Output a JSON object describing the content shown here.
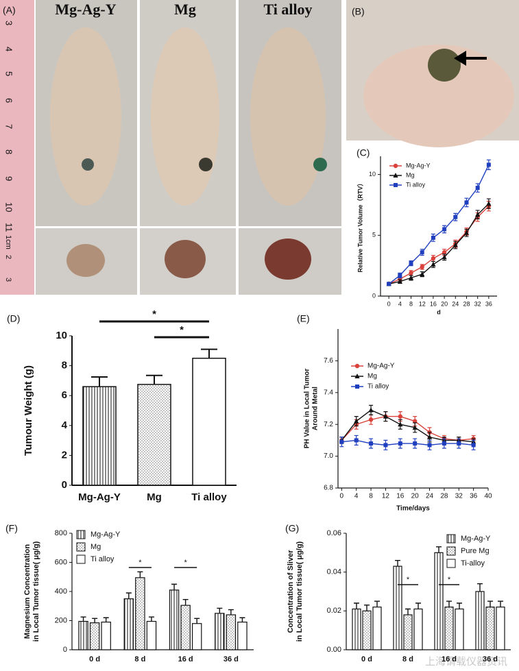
{
  "photos": {
    "a_label": "(A)",
    "groups": [
      "Mg-Ag-Y",
      "Mg",
      "Ti alloy"
    ],
    "ruler_top": [
      "3",
      "4",
      "5",
      "6",
      "7",
      "8",
      "9",
      "10",
      "11"
    ],
    "ruler_bottom": [
      "1cm",
      "2",
      "3"
    ],
    "b_label": "(B)"
  },
  "watermark": "上海谓载仪器资讯",
  "chart_data": [
    {
      "type": "line",
      "panel_label": "(C)",
      "xlabel": "d",
      "ylabel": "Relative Tumor Volume（RTV）",
      "x": [
        0,
        4,
        8,
        12,
        16,
        20,
        24,
        28,
        32,
        36
      ],
      "xlim": [
        -3,
        39
      ],
      "xticks": [
        0,
        4,
        8,
        12,
        16,
        20,
        24,
        28,
        32,
        36
      ],
      "ylim": [
        0,
        11.5
      ],
      "yticks": [
        0,
        5,
        10
      ],
      "legend": "top-left",
      "series": [
        {
          "name": "Mg-Ag-Y",
          "color": "#d9413a",
          "marker": "circle",
          "values": [
            1,
            1.4,
            1.9,
            2.4,
            3.1,
            3.6,
            4.3,
            5.3,
            6.5,
            7.4
          ],
          "errors": [
            0.1,
            0.2,
            0.2,
            0.2,
            0.25,
            0.25,
            0.3,
            0.3,
            0.35,
            0.4
          ]
        },
        {
          "name": "Mg",
          "color": "#111111",
          "marker": "triangle",
          "values": [
            1,
            1.2,
            1.5,
            1.8,
            2.6,
            3.2,
            4.2,
            5.2,
            6.7,
            7.6
          ],
          "errors": [
            0.1,
            0.15,
            0.2,
            0.2,
            0.25,
            0.25,
            0.3,
            0.3,
            0.35,
            0.4
          ]
        },
        {
          "name": "Ti alloy",
          "color": "#1f3fbf",
          "marker": "square",
          "values": [
            1,
            1.7,
            2.7,
            3.6,
            4.8,
            5.5,
            6.5,
            7.7,
            8.9,
            10.8
          ],
          "errors": [
            0.1,
            0.2,
            0.2,
            0.25,
            0.3,
            0.3,
            0.3,
            0.35,
            0.35,
            0.4
          ]
        }
      ]
    },
    {
      "type": "bar",
      "panel_label": "(D)",
      "ylabel": "Tumour Weight (g)",
      "categories": [
        "Mg-Ag-Y",
        "Mg",
        "Ti alloy"
      ],
      "values": [
        6.6,
        6.75,
        8.5
      ],
      "errors": [
        0.65,
        0.6,
        0.6
      ],
      "patterns": [
        "vertical-lines",
        "dots",
        "none"
      ],
      "color": "#111111",
      "ylim": [
        0,
        10
      ],
      "yticks": [
        0,
        2,
        4,
        6,
        8,
        10
      ],
      "annotations": [
        "*",
        "*"
      ]
    },
    {
      "type": "line",
      "panel_label": "(E)",
      "xlabel": "Time/days",
      "ylabel": [
        "PH Value in Local Tumor",
        "Around Metal"
      ],
      "x": [
        0,
        4,
        8,
        12,
        16,
        20,
        24,
        28,
        32,
        36
      ],
      "xlim": [
        -1,
        40
      ],
      "xticks": [
        0,
        4,
        8,
        12,
        16,
        20,
        24,
        28,
        32,
        36,
        40
      ],
      "ylim": [
        6.8,
        7.8
      ],
      "yticks": [
        6.8,
        {
          "value": 7,
          "label": "7.0"
        },
        7.2,
        7.4,
        7.6
      ],
      "legend": "top-left",
      "series": [
        {
          "name": "Mg-Ag-Y",
          "color": "#d9413a",
          "marker": "circle",
          "values": [
            7.1,
            7.2,
            7.23,
            7.25,
            7.25,
            7.22,
            7.15,
            7.11,
            7.1,
            7.11
          ],
          "errors": [
            0.02,
            0.03,
            0.03,
            0.03,
            0.03,
            0.03,
            0.03,
            0.02,
            0.02,
            0.02
          ]
        },
        {
          "name": "Mg",
          "color": "#111111",
          "marker": "triangle",
          "values": [
            7.1,
            7.22,
            7.29,
            7.25,
            7.2,
            7.18,
            7.12,
            7.1,
            7.1,
            7.09
          ],
          "errors": [
            0.02,
            0.03,
            0.03,
            0.03,
            0.03,
            0.03,
            0.03,
            0.02,
            0.02,
            0.02
          ]
        },
        {
          "name": "Ti alloy",
          "color": "#1f3fbf",
          "marker": "square",
          "values": [
            7.09,
            7.1,
            7.08,
            7.07,
            7.08,
            7.08,
            7.07,
            7.08,
            7.08,
            7.07
          ],
          "errors": [
            0.03,
            0.03,
            0.03,
            0.03,
            0.03,
            0.03,
            0.03,
            0.03,
            0.03,
            0.03
          ]
        }
      ]
    },
    {
      "type": "grouped-bar",
      "panel_label": "(F)",
      "ylabel": [
        "Magnesium Concentration",
        "in Local Tumor tissue( μg/g)"
      ],
      "categories": [
        "0 d",
        "8 d",
        "16 d",
        "36 d"
      ],
      "ylim": [
        0,
        800
      ],
      "yticks": [
        0,
        200,
        400,
        600,
        800
      ],
      "legend": "top-left",
      "annotations": [
        "*",
        "*"
      ],
      "series": [
        {
          "name": "Mg-Ag-Y",
          "color": "#111111",
          "pattern": "vertical-lines",
          "values": [
            195,
            350,
            410,
            250
          ],
          "errors": [
            30,
            40,
            40,
            35
          ]
        },
        {
          "name": "Mg",
          "color": "#111111",
          "pattern": "dots",
          "values": [
            185,
            495,
            305,
            240
          ],
          "errors": [
            30,
            40,
            40,
            35
          ]
        },
        {
          "name": "Ti alloy",
          "color": "#111111",
          "pattern": "none",
          "values": [
            190,
            195,
            180,
            190
          ],
          "errors": [
            30,
            30,
            35,
            30
          ]
        }
      ]
    },
    {
      "type": "grouped-bar",
      "panel_label": "(G)",
      "ylabel": [
        "Concentration of Sliver",
        "in Local Tumor tissue( μg/g)"
      ],
      "categories": [
        "0 d",
        "8 d",
        "16 d",
        "36 d"
      ],
      "ylim": [
        0,
        0.06
      ],
      "yticks": [
        {
          "value": 0,
          "label": "0.00"
        },
        {
          "value": 0.02,
          "label": "0.02"
        },
        {
          "value": 0.04,
          "label": "0.04"
        },
        {
          "value": 0.06,
          "label": "0.06"
        }
      ],
      "legend": "top-right",
      "annotations": [
        "*",
        "*"
      ],
      "series": [
        {
          "name": "Mg-Ag-Y",
          "color": "#111111",
          "pattern": "vertical-lines",
          "values": [
            0.021,
            0.043,
            0.05,
            0.03
          ],
          "errors": [
            0.003,
            0.003,
            0.003,
            0.004
          ]
        },
        {
          "name": "Pure Mg",
          "color": "#111111",
          "pattern": "dots",
          "values": [
            0.02,
            0.018,
            0.022,
            0.022
          ],
          "errors": [
            0.003,
            0.003,
            0.003,
            0.003
          ]
        },
        {
          "name": "Ti-alloy",
          "color": "#111111",
          "pattern": "none",
          "values": [
            0.022,
            0.021,
            0.021,
            0.022
          ],
          "errors": [
            0.003,
            0.003,
            0.003,
            0.003
          ]
        }
      ]
    }
  ]
}
